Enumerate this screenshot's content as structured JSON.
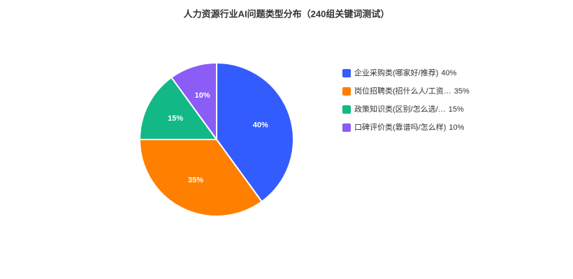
{
  "chart_data": {
    "type": "pie",
    "title": "人力资源行业AI问题类型分布（240组关键词测试）",
    "categories": [
      "企业采购类(哪家好/推荐)",
      "岗位招聘类(招什么人/工资…",
      "政策知识类(区别/怎么选/…",
      "口碑评价类(靠谱吗/怎么样)"
    ],
    "values": [
      40,
      35,
      15,
      10
    ],
    "value_labels": [
      "40%",
      "35%",
      "15%",
      "10%"
    ],
    "colors": [
      "#335CFF",
      "#FF7F00",
      "#12B886",
      "#8B5CF6"
    ],
    "legend": "right"
  }
}
